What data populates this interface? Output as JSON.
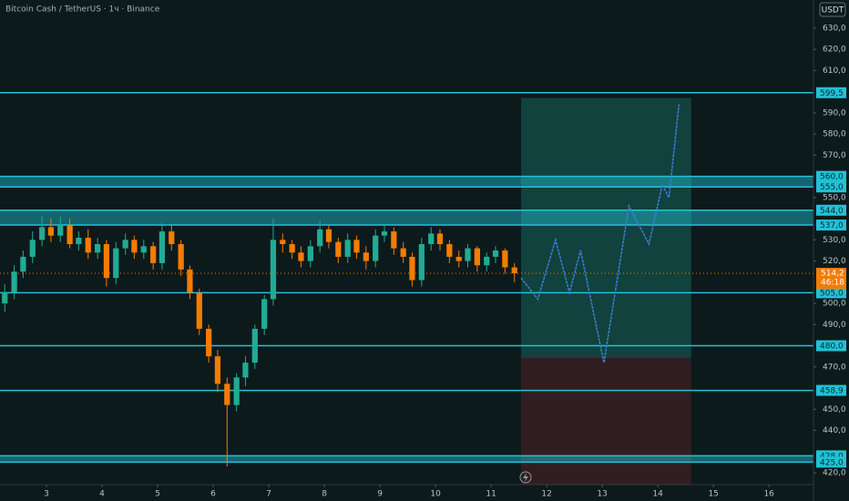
{
  "chart_data": {
    "type": "candlestick",
    "title": "Bitcoin Cash / TetherUS · 1ч · Binance",
    "currency": "USDT",
    "up_color": "#22ab94",
    "down_color": "#f57c00",
    "level_color": "#22c1d6",
    "xlim": [
      2.164,
      16.8
    ],
    "ylim": [
      414.4,
      643.3
    ],
    "xticks": [
      3,
      4,
      5,
      6,
      7,
      8,
      9,
      10,
      11,
      12,
      13,
      14,
      15,
      16
    ],
    "yticks": [
      {
        "value": 630,
        "label": "630,0"
      },
      {
        "value": 620,
        "label": "620,0"
      },
      {
        "value": 610,
        "label": "610,0"
      },
      {
        "value": 590,
        "label": "590,0"
      },
      {
        "value": 580,
        "label": "580,0"
      },
      {
        "value": 570,
        "label": "570,0"
      },
      {
        "value": 550,
        "label": "550,0"
      },
      {
        "value": 530,
        "label": "530,0"
      },
      {
        "value": 520,
        "label": "520,0"
      },
      {
        "value": 500,
        "label": "500,0"
      },
      {
        "value": 490,
        "label": "490,0"
      },
      {
        "value": 470,
        "label": "470,0"
      },
      {
        "value": 450,
        "label": "450,0"
      },
      {
        "value": 440,
        "label": "440,0"
      },
      {
        "value": 420,
        "label": "420,0"
      }
    ],
    "levels": [
      {
        "value": 599.5,
        "label": "599,5"
      },
      {
        "value": 560,
        "label": "560,0"
      },
      {
        "value": 555,
        "label": "555,0"
      },
      {
        "value": 544,
        "label": "544,0"
      },
      {
        "value": 537,
        "label": "537,0"
      },
      {
        "value": 505,
        "label": "505,0"
      },
      {
        "value": 480,
        "label": "480,0"
      },
      {
        "value": 458.9,
        "label": "458,9"
      },
      {
        "value": 428,
        "label": "428,0"
      },
      {
        "value": 425,
        "label": "425,0"
      }
    ],
    "zones": [
      [
        555,
        560
      ],
      [
        537,
        544
      ],
      [
        425,
        428
      ]
    ],
    "current_price": {
      "value": 514.2,
      "label": "514,2"
    },
    "countdown": "46:18",
    "position": {
      "x_start": 11.54,
      "x_end": 14.6,
      "top": 597,
      "mid": 474.2,
      "bottom": 414.4
    },
    "projection": {
      "x": [
        11.54,
        11.84,
        12.16,
        12.41,
        12.61,
        13.03,
        13.48,
        13.84,
        14.08,
        14.2,
        14.38
      ],
      "values": [
        512,
        502,
        530,
        505,
        525,
        472,
        546,
        528,
        556,
        550,
        594
      ]
    },
    "x": [
      2.25,
      2.42,
      2.58,
      2.75,
      2.92,
      3.08,
      3.25,
      3.42,
      3.58,
      3.75,
      3.92,
      4.08,
      4.25,
      4.42,
      4.58,
      4.75,
      4.92,
      5.08,
      5.25,
      5.42,
      5.58,
      5.75,
      5.92,
      6.08,
      6.25,
      6.42,
      6.58,
      6.75,
      6.92,
      7.08,
      7.25,
      7.42,
      7.58,
      7.75,
      7.92,
      8.08,
      8.25,
      8.42,
      8.58,
      8.75,
      8.92,
      9.08,
      9.25,
      9.42,
      9.58,
      9.75,
      9.92,
      10.08,
      10.25,
      10.42,
      10.58,
      10.75,
      10.92,
      11.08,
      11.25,
      11.42
    ],
    "open": [
      500,
      505,
      515,
      522,
      530,
      536,
      532,
      537,
      528,
      531,
      524,
      528,
      512,
      526,
      530,
      524,
      527,
      519,
      534,
      528,
      516,
      505,
      488,
      475,
      462,
      452,
      465,
      472,
      488,
      502,
      530,
      528,
      524,
      520,
      527,
      535,
      529,
      522,
      530,
      524,
      520,
      532,
      534,
      526,
      522,
      511,
      528,
      533,
      528,
      522,
      520,
      526,
      518,
      522,
      525,
      517
    ],
    "high": [
      509,
      518,
      525,
      534,
      541,
      540,
      541,
      540,
      534,
      535,
      531,
      530,
      529,
      533,
      532,
      530,
      529,
      538,
      537,
      530,
      518,
      507,
      490,
      478,
      465,
      467,
      475,
      490,
      504,
      540,
      533,
      530,
      527,
      530,
      539,
      537,
      531,
      533,
      532,
      527,
      535,
      537,
      536,
      529,
      524,
      531,
      536,
      535,
      530,
      525,
      528,
      527,
      524,
      527,
      526,
      519
    ],
    "low": [
      496,
      502,
      512,
      519,
      527,
      529,
      529,
      526,
      525,
      521,
      521,
      508,
      509,
      523,
      521,
      521,
      516,
      516,
      525,
      513,
      502,
      485,
      472,
      458,
      423,
      449,
      461,
      469,
      485,
      499,
      524,
      521,
      517,
      517,
      524,
      526,
      519,
      519,
      521,
      516,
      517,
      529,
      523,
      519,
      508,
      508,
      525,
      525,
      519,
      517,
      517,
      515,
      515,
      519,
      514,
      510
    ],
    "close": [
      505,
      515,
      522,
      530,
      536,
      532,
      537,
      528,
      531,
      524,
      528,
      512,
      526,
      530,
      524,
      527,
      519,
      534,
      528,
      516,
      505,
      488,
      475,
      462,
      452,
      465,
      472,
      488,
      502,
      530,
      528,
      524,
      520,
      527,
      535,
      529,
      522,
      530,
      524,
      520,
      532,
      534,
      526,
      522,
      511,
      528,
      533,
      528,
      522,
      520,
      526,
      518,
      522,
      525,
      517,
      514.2
    ]
  }
}
